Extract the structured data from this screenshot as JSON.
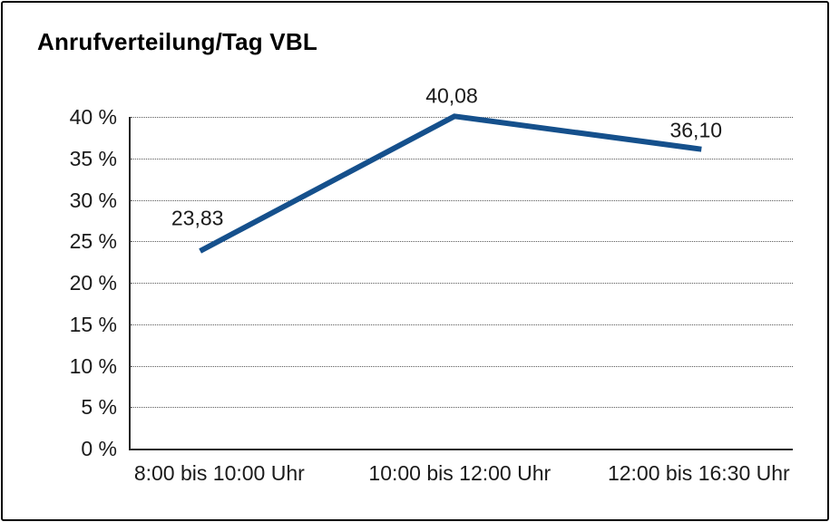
{
  "chart_data": {
    "type": "line",
    "title": "Anrufverteilung/Tag VBL",
    "categories": [
      "8:00 bis 10:00 Uhr",
      "10:00 bis 12:00 Uhr",
      "12:00 bis 16:30 Uhr"
    ],
    "values": [
      23.83,
      40.08,
      36.1
    ],
    "data_labels": [
      "23,83",
      "40,08",
      "36,10"
    ],
    "y_ticks": [
      {
        "value": 0,
        "label": "0 %"
      },
      {
        "value": 5,
        "label": "5 %"
      },
      {
        "value": 10,
        "label": "10 %"
      },
      {
        "value": 15,
        "label": "15 %"
      },
      {
        "value": 20,
        "label": "20 %"
      },
      {
        "value": 25,
        "label": "25 %"
      },
      {
        "value": 30,
        "label": "30 %"
      },
      {
        "value": 35,
        "label": "35 %"
      },
      {
        "value": 40,
        "label": "40 %"
      }
    ],
    "ylim": [
      0,
      40
    ],
    "xlabel": "",
    "ylabel": "",
    "grid": "horizontal-dotted",
    "legend": "none",
    "line_color": "#15508c",
    "text_color": "#1a1a1a"
  }
}
